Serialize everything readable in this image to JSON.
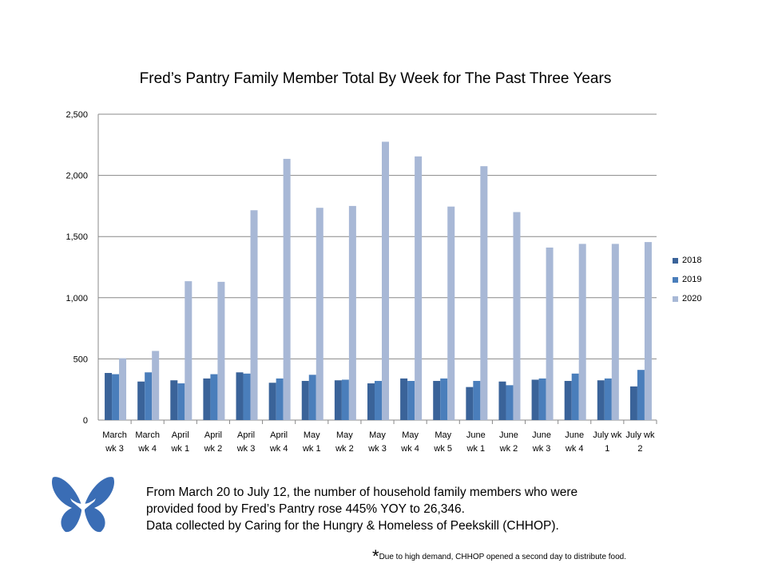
{
  "chart_data": {
    "type": "bar",
    "title": "Fred’s Pantry Family Member Total By Week for The Past Three Years",
    "xlabel": "",
    "ylabel": "",
    "ylim": [
      0,
      2500
    ],
    "yticks": [
      "0",
      "500",
      "1,000",
      "1,500",
      "2,000",
      "2,500"
    ],
    "grid": true,
    "legend_position": "right",
    "categories": [
      [
        "March",
        "wk 3"
      ],
      [
        "March",
        "wk 4"
      ],
      [
        "April",
        "wk 1"
      ],
      [
        "April",
        "wk 2"
      ],
      [
        "April",
        "wk 3"
      ],
      [
        "April",
        "wk 4"
      ],
      [
        "May",
        "wk 1"
      ],
      [
        "May",
        "wk 2"
      ],
      [
        "May",
        "wk 3"
      ],
      [
        "May",
        "wk 4"
      ],
      [
        "May",
        "wk 5"
      ],
      [
        "June",
        "wk 1"
      ],
      [
        "June",
        "wk 2"
      ],
      [
        "June",
        "wk 3"
      ],
      [
        "June",
        "wk 4"
      ],
      [
        "July wk",
        "1"
      ],
      [
        "July wk",
        "2"
      ]
    ],
    "series": [
      {
        "name": "2018",
        "color": "#3a6399",
        "values": [
          385,
          315,
          325,
          340,
          390,
          305,
          320,
          325,
          300,
          340,
          320,
          270,
          315,
          330,
          320,
          325,
          275
        ]
      },
      {
        "name": "2019",
        "color": "#4a7ebb",
        "values": [
          375,
          390,
          300,
          375,
          380,
          340,
          370,
          330,
          320,
          320,
          340,
          320,
          285,
          340,
          380,
          340,
          410
        ]
      },
      {
        "name": "2020",
        "color": "#a8b8d6",
        "values": [
          505,
          565,
          1135,
          1130,
          1715,
          2135,
          1735,
          1750,
          2275,
          2155,
          1745,
          2075,
          1700,
          1410,
          1440,
          1440,
          1455
        ]
      }
    ]
  },
  "note": {
    "line1": "From March 20 to July 12, the number of household family members who were",
    "line2": "provided food  by Fred’s Pantry rose 445% YOY to 26,346.",
    "line3": "Data collected by Caring for the Hungry & Homeless of Peekskill (CHHOP)."
  },
  "footnote": {
    "star": "*",
    "text": "Due to high demand, CHHOP opened a second day to distribute food."
  },
  "logo": {
    "name": "CHHOP butterfly logo",
    "color": "#3a6db5"
  }
}
